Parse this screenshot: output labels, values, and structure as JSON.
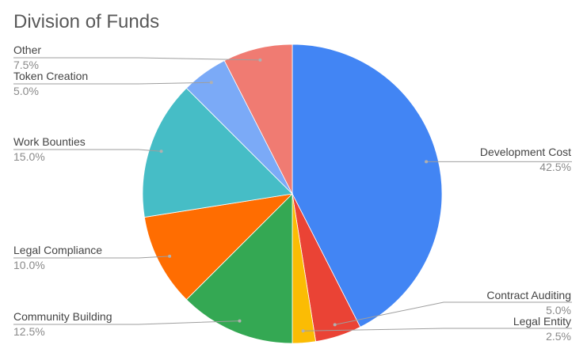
{
  "chart_data": {
    "type": "pie",
    "title": "Division of Funds",
    "slices": [
      {
        "label": "Development Cost",
        "value": 42.5,
        "value_label": "42.5%",
        "color": "#4285f4"
      },
      {
        "label": "Contract Auditing",
        "value": 5.0,
        "value_label": "5.0%",
        "color": "#ea4335"
      },
      {
        "label": "Legal Entity",
        "value": 2.5,
        "value_label": "2.5%",
        "color": "#fbbc04"
      },
      {
        "label": "Community Building",
        "value": 12.5,
        "value_label": "12.5%",
        "color": "#34a853"
      },
      {
        "label": "Legal Compliance",
        "value": 10.0,
        "value_label": "10.0%",
        "color": "#ff6d01"
      },
      {
        "label": "Work Bounties",
        "value": 15.0,
        "value_label": "15.0%",
        "color": "#46bdc6"
      },
      {
        "label": "Token Creation",
        "value": 5.0,
        "value_label": "5.0%",
        "color": "#7baaf7"
      },
      {
        "label": "Other",
        "value": 7.5,
        "value_label": "7.5%",
        "color": "#f07b72"
      }
    ],
    "legend": "none"
  }
}
